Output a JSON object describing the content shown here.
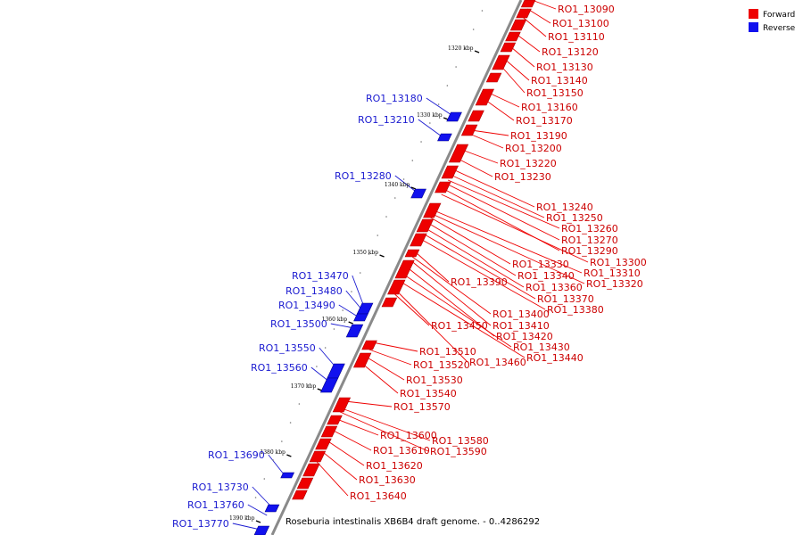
{
  "caption": "Roseburia intestinalis XB6B4 draft genome. - 0..4286292",
  "legend": {
    "forward_label": "Forward",
    "reverse_label": "Reverse",
    "forward_color": "#ee0000",
    "reverse_color": "#1111ee"
  },
  "ticks": [
    "1320 kbp",
    "1330 kbp",
    "1340 kbp",
    "1350 kbp",
    "1360 kbp",
    "1370 kbp",
    "1380 kbp",
    "1390 kbp"
  ],
  "forward_genes": [
    "RO1_13090",
    "RO1_13100",
    "RO1_13110",
    "RO1_13120",
    "RO1_13130",
    "RO1_13140",
    "RO1_13150",
    "RO1_13160",
    "RO1_13170",
    "RO1_13190",
    "RO1_13200",
    "RO1_13220",
    "RO1_13230",
    "RO1_13240",
    "RO1_13250",
    "RO1_13260",
    "RO1_13270",
    "RO1_13290",
    "RO1_13300",
    "RO1_13310",
    "RO1_13320",
    "RO1_13330",
    "RO1_13340",
    "RO1_13360",
    "RO1_13370",
    "RO1_13380",
    "RO1_13390",
    "RO1_13400",
    "RO1_13410",
    "RO1_13420",
    "RO1_13430",
    "RO1_13440",
    "RO1_13450",
    "RO1_13460",
    "RO1_13510",
    "RO1_13520",
    "RO1_13530",
    "RO1_13540",
    "RO1_13570",
    "RO1_13580",
    "RO1_13590",
    "RO1_13600",
    "RO1_13610",
    "RO1_13620",
    "RO1_13630",
    "RO1_13640"
  ],
  "reverse_genes": [
    "RO1_13180",
    "RO1_13210",
    "RO1_13280",
    "RO1_13470",
    "RO1_13480",
    "RO1_13490",
    "RO1_13500",
    "RO1_13550",
    "RO1_13560",
    "RO1_13690",
    "RO1_13730",
    "RO1_13760",
    "RO1_13770"
  ]
}
